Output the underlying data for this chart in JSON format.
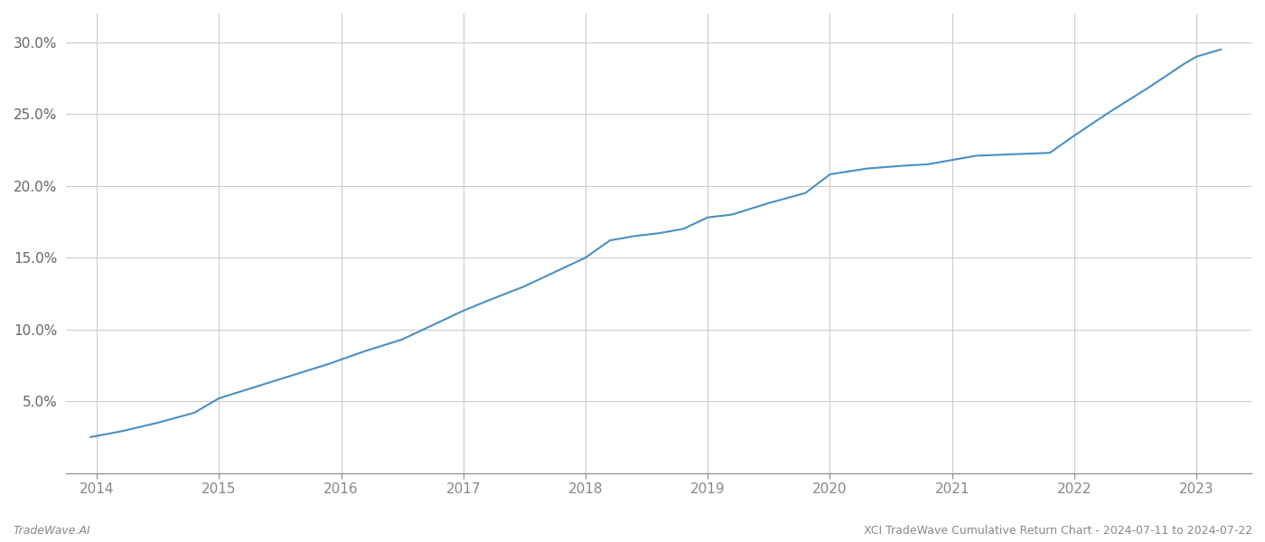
{
  "footer_left": "TradeWave.AI",
  "footer_right": "XCI TradeWave Cumulative Return Chart - 2024-07-11 to 2024-07-22",
  "line_color": "#4a90c4",
  "background_color": "#ffffff",
  "grid_color": "#cccccc",
  "x_years": [
    2014,
    2015,
    2016,
    2017,
    2018,
    2019,
    2020,
    2021,
    2022,
    2023
  ],
  "x_data": [
    2013.95,
    2014.2,
    2014.5,
    2014.8,
    2015.0,
    2015.3,
    2015.6,
    2015.9,
    2016.2,
    2016.5,
    2016.8,
    2017.0,
    2017.2,
    2017.5,
    2017.8,
    2018.0,
    2018.2,
    2018.4,
    2018.6,
    2018.8,
    2019.0,
    2019.2,
    2019.5,
    2019.8,
    2020.0,
    2020.3,
    2020.6,
    2020.8,
    2021.0,
    2021.2,
    2021.5,
    2021.8,
    2022.0,
    2022.3,
    2022.6,
    2022.9,
    2023.0,
    2023.2
  ],
  "y_data": [
    2.5,
    2.9,
    3.5,
    4.2,
    5.2,
    6.0,
    6.8,
    7.6,
    8.5,
    9.3,
    10.5,
    11.3,
    12.0,
    13.0,
    14.2,
    15.0,
    16.2,
    16.5,
    16.7,
    17.0,
    17.8,
    18.0,
    18.8,
    19.5,
    20.8,
    21.2,
    21.4,
    21.5,
    21.8,
    22.1,
    22.2,
    22.3,
    23.5,
    25.2,
    26.8,
    28.5,
    29.0,
    29.5
  ],
  "ylim": [
    0,
    32
  ],
  "yticks": [
    5.0,
    10.0,
    15.0,
    20.0,
    25.0,
    30.0
  ],
  "xlim": [
    2013.75,
    2023.45
  ],
  "footer_fontsize": 9,
  "tick_fontsize": 11,
  "line_width": 1.5
}
